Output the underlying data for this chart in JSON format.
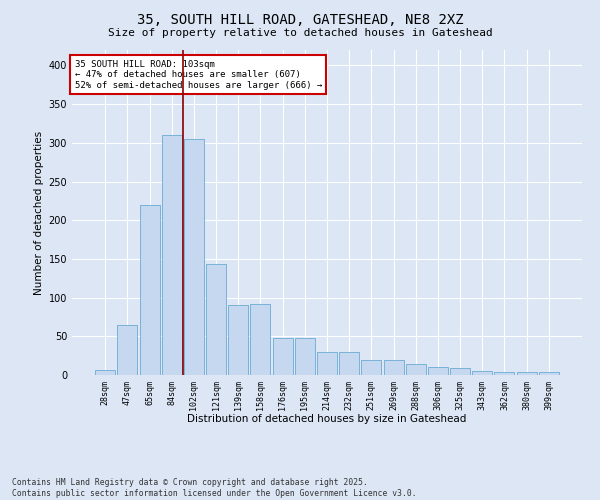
{
  "title": "35, SOUTH HILL ROAD, GATESHEAD, NE8 2XZ",
  "subtitle": "Size of property relative to detached houses in Gateshead",
  "xlabel": "Distribution of detached houses by size in Gateshead",
  "ylabel": "Number of detached properties",
  "categories": [
    "28sqm",
    "47sqm",
    "65sqm",
    "84sqm",
    "102sqm",
    "121sqm",
    "139sqm",
    "158sqm",
    "176sqm",
    "195sqm",
    "214sqm",
    "232sqm",
    "251sqm",
    "269sqm",
    "288sqm",
    "306sqm",
    "325sqm",
    "343sqm",
    "362sqm",
    "380sqm",
    "399sqm"
  ],
  "values": [
    7,
    65,
    220,
    310,
    305,
    143,
    90,
    92,
    48,
    48,
    30,
    30,
    20,
    19,
    14,
    10,
    9,
    5,
    4,
    4,
    4
  ],
  "bar_color": "#c5d8f0",
  "bar_edge_color": "#6aaad4",
  "vline_x_index": 4,
  "vline_color": "#8b0000",
  "annotation_text": "35 SOUTH HILL ROAD: 103sqm\n← 47% of detached houses are smaller (607)\n52% of semi-detached houses are larger (666) →",
  "annotation_box_color": "#ffffff",
  "annotation_box_edge": "#cc0000",
  "background_color": "#dce6f5",
  "plot_bg_color": "#dce6f5",
  "footer_text": "Contains HM Land Registry data © Crown copyright and database right 2025.\nContains public sector information licensed under the Open Government Licence v3.0.",
  "ylim": [
    0,
    420
  ],
  "yticks": [
    0,
    50,
    100,
    150,
    200,
    250,
    300,
    350,
    400
  ]
}
